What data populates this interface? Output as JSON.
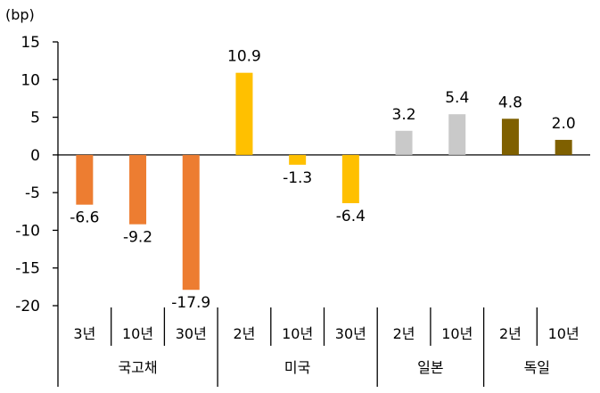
{
  "chart_data": {
    "type": "bar",
    "y_unit": "(bp)",
    "ylim": [
      -20,
      15
    ],
    "yticks": [
      15,
      10,
      5,
      0,
      -5,
      -10,
      -15,
      -20
    ],
    "grid": false,
    "legend": "none",
    "groups": [
      {
        "name": "국고채",
        "color": "#ED7D31"
      },
      {
        "name": "미국",
        "color": "#FFC000"
      },
      {
        "name": "일본",
        "color": "#C9C9C9"
      },
      {
        "name": "독일",
        "color": "#7F6000"
      }
    ],
    "bars": [
      {
        "group": 0,
        "category": "3년",
        "value": -6.6,
        "label": "-6.6"
      },
      {
        "group": 0,
        "category": "10년",
        "value": -9.2,
        "label": "-9.2"
      },
      {
        "group": 0,
        "category": "30년",
        "value": -17.9,
        "label": "-17.9"
      },
      {
        "group": 1,
        "category": "2년",
        "value": 10.9,
        "label": "10.9"
      },
      {
        "group": 1,
        "category": "10년",
        "value": -1.3,
        "label": "-1.3"
      },
      {
        "group": 1,
        "category": "30년",
        "value": -6.4,
        "label": "-6.4"
      },
      {
        "group": 2,
        "category": "2년",
        "value": 3.2,
        "label": "3.2"
      },
      {
        "group": 2,
        "category": "10년",
        "value": 5.4,
        "label": "5.4"
      },
      {
        "group": 3,
        "category": "2년",
        "value": 4.8,
        "label": "4.8"
      },
      {
        "group": 3,
        "category": "10년",
        "value": 2.0,
        "label": "2.0"
      }
    ]
  }
}
